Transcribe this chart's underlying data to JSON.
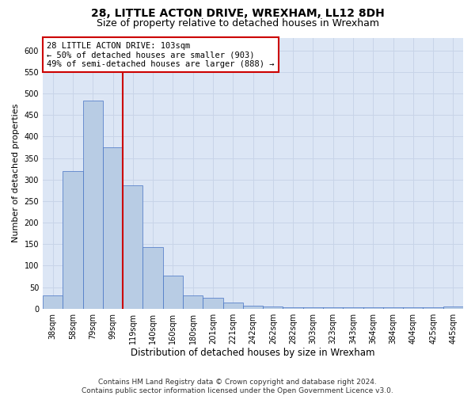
{
  "title": "28, LITTLE ACTON DRIVE, WREXHAM, LL12 8DH",
  "subtitle": "Size of property relative to detached houses in Wrexham",
  "xlabel": "Distribution of detached houses by size in Wrexham",
  "ylabel": "Number of detached properties",
  "categories": [
    "38sqm",
    "58sqm",
    "79sqm",
    "99sqm",
    "119sqm",
    "140sqm",
    "160sqm",
    "180sqm",
    "201sqm",
    "221sqm",
    "242sqm",
    "262sqm",
    "282sqm",
    "303sqm",
    "323sqm",
    "343sqm",
    "364sqm",
    "384sqm",
    "404sqm",
    "425sqm",
    "445sqm"
  ],
  "values": [
    30,
    320,
    483,
    375,
    287,
    143,
    76,
    30,
    26,
    14,
    6,
    5,
    3,
    3,
    3,
    3,
    3,
    3,
    3,
    3,
    5
  ],
  "bar_color": "#b8cce4",
  "bar_edge_color": "#4472c4",
  "bar_edge_width": 0.5,
  "vline_x": 3.5,
  "vline_color": "#cc0000",
  "annotation_text": "28 LITTLE ACTON DRIVE: 103sqm\n← 50% of detached houses are smaller (903)\n49% of semi-detached houses are larger (888) →",
  "annotation_box_color": "#ffffff",
  "annotation_box_edge_color": "#cc0000",
  "ylim": [
    0,
    630
  ],
  "yticks": [
    0,
    50,
    100,
    150,
    200,
    250,
    300,
    350,
    400,
    450,
    500,
    550,
    600
  ],
  "grid_color": "#c8d4e8",
  "background_color": "#dce6f5",
  "footer_line1": "Contains HM Land Registry data © Crown copyright and database right 2024.",
  "footer_line2": "Contains public sector information licensed under the Open Government Licence v3.0.",
  "title_fontsize": 10,
  "subtitle_fontsize": 9,
  "xlabel_fontsize": 8.5,
  "ylabel_fontsize": 8,
  "tick_fontsize": 7,
  "annotation_fontsize": 7.5,
  "footer_fontsize": 6.5
}
